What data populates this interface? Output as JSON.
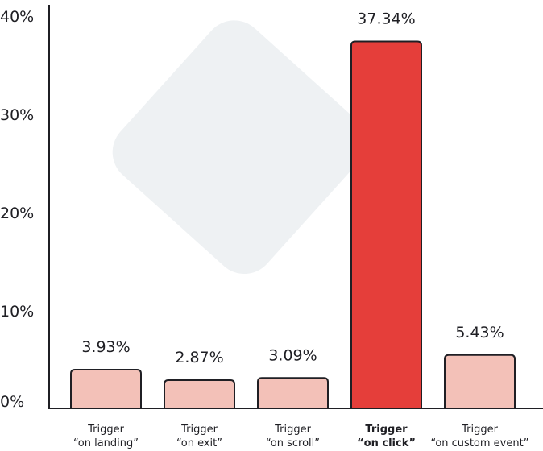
{
  "chart_data": {
    "type": "bar",
    "title": "",
    "xlabel": "",
    "ylabel": "",
    "ylim": [
      0,
      40
    ],
    "yticks": [
      0,
      10,
      20,
      30,
      40
    ],
    "ytick_labels": [
      "0%",
      "10%",
      "20%",
      "30%",
      "40%"
    ],
    "grid": false,
    "categories": [
      {
        "line1": "Trigger",
        "line2": "“on landing”"
      },
      {
        "line1": "Trigger",
        "line2": "“on exit”"
      },
      {
        "line1": "Trigger",
        "line2": "“on scroll”"
      },
      {
        "line1": "Trigger",
        "line2": "“on click”"
      },
      {
        "line1": "Trigger",
        "line2": "“on custom event”"
      }
    ],
    "values": [
      3.93,
      2.87,
      3.09,
      37.34,
      5.43
    ],
    "value_labels": [
      "3.93%",
      "2.87%",
      "3.09%",
      "37.34%",
      "5.43%"
    ],
    "highlight_index": 3,
    "colors": {
      "bar": "#f3c1b8",
      "highlight_bar": "#e53e3a",
      "bar_stroke": "#1f1f24",
      "axis": "#1f1f24",
      "background_shape": "#eef1f3"
    }
  }
}
